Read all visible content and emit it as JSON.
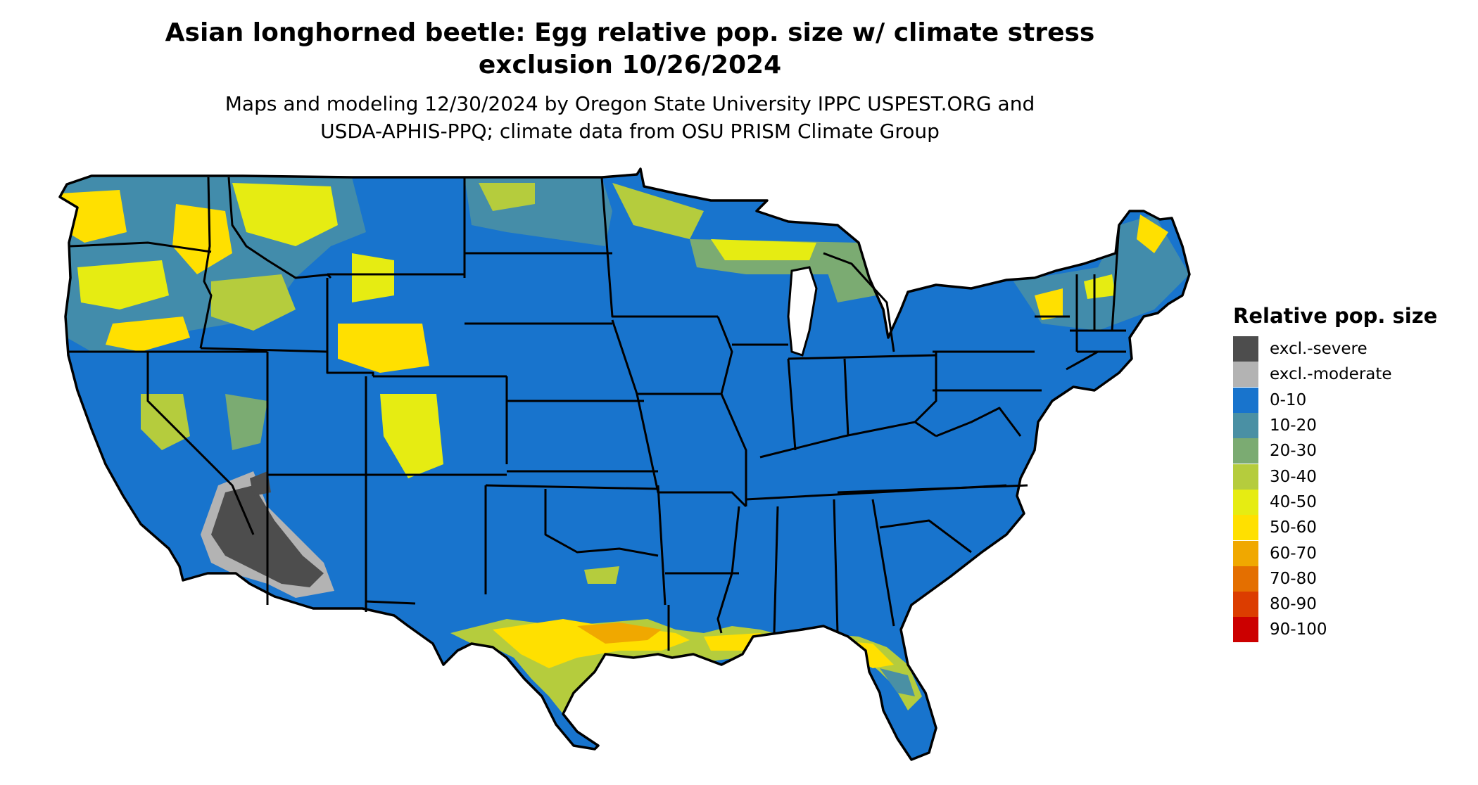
{
  "title_line1": "Asian longhorned beetle: Egg relative pop. size w/ climate stress",
  "title_line2": "exclusion 10/26/2024",
  "subtitle_line1": "Maps and modeling 12/30/2024 by Oregon State University IPPC USPEST.ORG and",
  "subtitle_line2": "USDA-APHIS-PPQ; climate data from OSU PRISM Climate Group",
  "legend": {
    "title": "Relative pop. size",
    "items": [
      {
        "label": "excl.-severe",
        "color": "#4d4d4d"
      },
      {
        "label": "excl.-moderate",
        "color": "#b3b3b3"
      },
      {
        "label": "0-10",
        "color": "#1874cd"
      },
      {
        "label": "10-20",
        "color": "#4a90a4"
      },
      {
        "label": "20-30",
        "color": "#7bab72"
      },
      {
        "label": "30-40",
        "color": "#b5cc3d"
      },
      {
        "label": "40-50",
        "color": "#e6ec12"
      },
      {
        "label": "50-60",
        "color": "#ffe000"
      },
      {
        "label": "60-70",
        "color": "#f0a800"
      },
      {
        "label": "70-80",
        "color": "#e46f00"
      },
      {
        "label": "80-90",
        "color": "#dc3d00"
      },
      {
        "label": "90-100",
        "color": "#cc0000"
      }
    ]
  },
  "map_colors": {
    "base": "#1874cd",
    "border": "#000000",
    "outline": "#000000"
  }
}
